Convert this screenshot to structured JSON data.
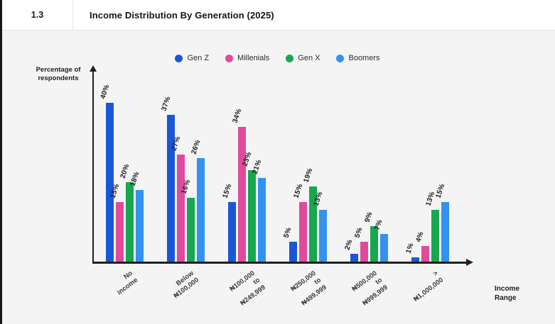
{
  "header": {
    "section_number": "1.3",
    "title": "Income Distribution By Generation (2025)"
  },
  "chart_data": {
    "type": "bar",
    "title": "Income Distribution By Generation (2025)",
    "categories": [
      "No income",
      "Below\n₦100,000",
      "₦100,000 to\n₦249,999",
      "₦250,000 to\n₦499,999",
      "₦500,000 to\n₦999,999",
      "> ₦1,000,000"
    ],
    "series": [
      {
        "name": "Gen Z",
        "color": "#1a57d6",
        "values": [
          40,
          37,
          15,
          5,
          2,
          1
        ]
      },
      {
        "name": "Millenials",
        "color": "#df4a9c",
        "values": [
          15,
          27,
          34,
          15,
          5,
          4
        ]
      },
      {
        "name": "Gen X",
        "color": "#17a74e",
        "values": [
          20,
          16,
          23,
          19,
          9,
          13
        ]
      },
      {
        "name": "Boomers",
        "color": "#3392f0",
        "values": [
          18,
          26,
          21,
          13,
          7,
          15
        ]
      }
    ],
    "value_suffix": "%",
    "xlabel": "Income\nRange",
    "ylabel": "Percentage of\nrespondents",
    "ylim": [
      0,
      45
    ],
    "grid": false,
    "legend_position": "top-center",
    "axis_color": "#1f1f1f"
  }
}
